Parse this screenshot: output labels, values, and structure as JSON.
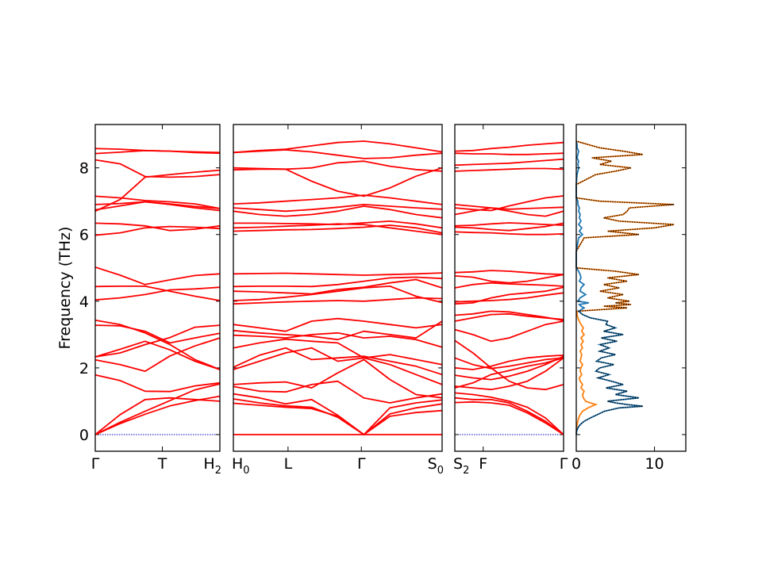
{
  "chart_data": [
    {
      "type": "line",
      "panel": "band-structure",
      "ylabel": "Frequency (THz)",
      "ylim": [
        -0.5,
        9.3
      ],
      "yticks": [
        0,
        2,
        4,
        6,
        8
      ],
      "segments": [
        {
          "xlim": [
            0,
            1
          ],
          "ticks": [
            {
              "pos": 0,
              "label": "Γ"
            },
            {
              "pos": 0.5385,
              "label": "T"
            },
            {
              "pos": 1,
              "label": "H",
              "sub": "2"
            }
          ],
          "bands": [
            [
              0,
              0.33,
              0.61,
              0.86,
              1.02,
              1.15
            ],
            [
              0,
              0.37,
              0.7,
              1.02,
              1.34,
              1.52
            ],
            [
              0,
              0.6,
              1.05,
              1.1,
              1.05,
              1.0
            ],
            [
              1.79,
              1.62,
              1.3,
              1.29,
              1.46,
              1.55
            ],
            [
              2.24,
              2.1,
              1.9,
              2.36,
              2.66,
              2.9
            ],
            [
              2.33,
              2.56,
              2.8,
              2.54,
              2.2,
              1.95
            ],
            [
              2.33,
              2.45,
              2.7,
              2.91,
              3.22,
              3.28
            ],
            [
              3.28,
              3.26,
              3.1,
              2.75,
              2.9,
              3.04
            ],
            [
              3.43,
              3.3,
              3.05,
              2.7,
              2.25,
              1.95
            ],
            [
              4.04,
              4.1,
              4.2,
              4.34,
              4.37,
              4.42
            ],
            [
              4.44,
              4.45,
              4.45,
              4.3,
              4.15,
              4.02
            ],
            [
              5.02,
              4.78,
              4.5,
              4.64,
              4.77,
              4.82
            ],
            [
              5.98,
              6.05,
              6.2,
              6.24,
              6.22,
              6.18
            ],
            [
              6.34,
              6.32,
              6.26,
              6.12,
              6.16,
              6.26
            ],
            [
              6.74,
              6.86,
              6.98,
              6.9,
              6.8,
              6.72
            ],
            [
              6.9,
              6.93,
              6.98,
              6.92,
              6.84,
              6.78
            ],
            [
              7.15,
              7.1,
              7.02,
              6.98,
              6.92,
              6.78
            ],
            [
              6.7,
              7.05,
              7.72,
              7.8,
              7.87,
              7.93
            ],
            [
              8.24,
              8.12,
              7.74,
              7.72,
              7.74,
              7.8
            ],
            [
              8.43,
              8.47,
              8.52,
              8.5,
              8.46,
              8.44
            ],
            [
              8.58,
              8.56,
              8.52,
              8.5,
              8.48,
              8.46
            ]
          ]
        },
        {
          "xlim": [
            0,
            1
          ],
          "ticks": [
            {
              "pos": 0,
              "label": "H",
              "sub": "0"
            },
            {
              "pos": 0.2619,
              "label": "L"
            },
            {
              "pos": 0.6131,
              "label": "Γ"
            },
            {
              "pos": 1,
              "label": "S",
              "sub": "0"
            }
          ],
          "bands": [
            [
              0,
              0,
              0,
              0,
              0,
              0,
              0,
              0,
              0
            ],
            [
              0.94,
              0.88,
              0.82,
              0.78,
              0.55,
              0,
              0.55,
              0.66,
              0.72
            ],
            [
              1.07,
              0.95,
              0.86,
              0.82,
              0.52,
              0,
              0.62,
              0.8,
              0.92
            ],
            [
              1.22,
              1.1,
              0.92,
              1.05,
              0.58,
              0,
              0.8,
              0.95,
              1.04
            ],
            [
              1.44,
              1.3,
              1.28,
              1.5,
              1.6,
              1.1,
              0.95,
              1.1,
              1.22
            ],
            [
              1.5,
              1.55,
              1.58,
              1.4,
              1.85,
              2.25,
              1.65,
              1.2,
              1.1
            ],
            [
              1.95,
              2.2,
              2.45,
              2.6,
              2.2,
              2.3,
              2.1,
              1.8,
              1.5
            ],
            [
              2.02,
              2.38,
              2.6,
              2.25,
              2.3,
              2.35,
              2.2,
              2.05,
              1.8
            ],
            [
              2.6,
              2.75,
              2.86,
              2.8,
              2.75,
              2.3,
              2.4,
              2.25,
              2.1
            ],
            [
              2.98,
              2.95,
              2.9,
              3.0,
              3.05,
              2.9,
              2.95,
              2.85,
              2.62
            ],
            [
              3.12,
              3.05,
              3.0,
              2.95,
              2.85,
              3.1,
              3.0,
              2.9,
              3.4
            ],
            [
              3.3,
              3.2,
              3.1,
              3.4,
              3.48,
              3.4,
              3.3,
              3.2,
              3.3
            ],
            [
              3.92,
              3.95,
              3.98,
              4.0,
              4.02,
              4.0,
              4.05,
              4.1,
              4.08
            ],
            [
              4.02,
              4.05,
              4.12,
              4.2,
              4.3,
              4.4,
              4.45,
              4.15,
              3.96
            ],
            [
              4.3,
              4.28,
              4.25,
              4.22,
              4.35,
              4.42,
              4.55,
              4.65,
              4.4
            ],
            [
              4.44,
              4.45,
              4.45,
              4.44,
              4.5,
              4.6,
              4.7,
              4.72,
              4.68
            ],
            [
              4.82,
              4.83,
              4.84,
              4.82,
              4.8,
              4.78,
              4.8,
              4.82,
              4.85
            ],
            [
              6.1,
              6.12,
              6.14,
              6.15,
              6.18,
              6.22,
              6.28,
              6.2,
              6.05
            ],
            [
              6.2,
              6.22,
              6.25,
              6.28,
              6.32,
              6.3,
              6.2,
              6.1,
              6.0
            ],
            [
              6.34,
              6.34,
              6.33,
              6.32,
              6.3,
              6.35,
              6.4,
              6.32,
              6.2
            ],
            [
              6.7,
              6.6,
              6.55,
              6.6,
              6.7,
              6.85,
              6.75,
              6.6,
              6.5
            ],
            [
              6.8,
              6.75,
              6.7,
              6.75,
              6.82,
              6.9,
              6.85,
              6.8,
              6.76
            ],
            [
              6.92,
              6.95,
              7.0,
              7.05,
              7.1,
              7.18,
              7.1,
              7.0,
              6.9
            ],
            [
              8.0,
              7.98,
              7.96,
              7.6,
              7.3,
              7.15,
              7.4,
              7.75,
              8.0
            ],
            [
              7.94,
              7.96,
              7.96,
              8.0,
              8.15,
              8.2,
              8.05,
              7.95,
              7.9
            ],
            [
              8.46,
              8.5,
              8.54,
              8.48,
              8.38,
              8.28,
              8.3,
              8.38,
              8.44
            ],
            [
              8.46,
              8.52,
              8.56,
              8.66,
              8.76,
              8.8,
              8.72,
              8.6,
              8.48
            ]
          ]
        },
        {
          "xlim": [
            0,
            1
          ],
          "ticks": [
            {
              "pos": 0,
              "label": "S",
              "sub": "2"
            },
            {
              "pos": 0.2609,
              "label": "F"
            },
            {
              "pos": 1,
              "label": "Γ"
            }
          ],
          "bands": [
            [
              0.96,
              0.98,
              0.95,
              0.88,
              0.65,
              0.35,
              0
            ],
            [
              1.1,
              1.05,
              1.05,
              0.95,
              0.7,
              0.4,
              0
            ],
            [
              1.25,
              1.2,
              1.12,
              1.0,
              0.82,
              0.5,
              0
            ],
            [
              1.45,
              1.4,
              1.35,
              1.45,
              1.6,
              1.9,
              2.3
            ],
            [
              1.4,
              1.55,
              1.8,
              1.92,
              2.05,
              2.15,
              2.3
            ],
            [
              1.78,
              1.7,
              1.65,
              1.75,
              1.9,
              2.1,
              2.35
            ],
            [
              2.0,
              1.95,
              2.05,
              2.2,
              2.3,
              2.35,
              2.38
            ],
            [
              2.3,
              2.1,
              1.98,
              2.05,
              2.15,
              2.25,
              2.3
            ],
            [
              2.82,
              2.45,
              2.0,
              1.6,
              1.4,
              1.35,
              1.5
            ],
            [
              3.15,
              3.0,
              2.8,
              2.9,
              3.1,
              3.3,
              3.4
            ],
            [
              3.4,
              3.5,
              3.6,
              3.62,
              3.55,
              3.5,
              3.45
            ],
            [
              3.58,
              3.62,
              3.7,
              3.68,
              3.6,
              3.52,
              3.42
            ],
            [
              3.98,
              4.0,
              4.02,
              4.05,
              4.1,
              4.18,
              4.25
            ],
            [
              3.92,
              3.95,
              4.1,
              4.2,
              4.25,
              4.3,
              4.42
            ],
            [
              4.4,
              4.5,
              4.55,
              4.52,
              4.5,
              4.48,
              4.45
            ],
            [
              4.76,
              4.72,
              4.6,
              4.55,
              4.6,
              4.7,
              4.8
            ],
            [
              4.86,
              4.88,
              4.92,
              4.9,
              4.86,
              4.82,
              4.8
            ],
            [
              6.08,
              6.06,
              6.05,
              6.02,
              6.0,
              6.0,
              6.02
            ],
            [
              6.22,
              6.2,
              6.15,
              6.12,
              6.18,
              6.24,
              6.34
            ],
            [
              6.26,
              6.28,
              6.32,
              6.35,
              6.33,
              6.3,
              6.28
            ],
            [
              6.6,
              6.7,
              6.8,
              6.7,
              6.6,
              6.55,
              6.7
            ],
            [
              6.9,
              6.85,
              6.8,
              6.76,
              6.78,
              6.8,
              6.82
            ],
            [
              6.8,
              6.75,
              6.72,
              6.86,
              6.98,
              7.1,
              7.16
            ],
            [
              7.9,
              7.92,
              7.94,
              7.96,
              7.98,
              7.98,
              7.96
            ],
            [
              8.08,
              8.1,
              8.12,
              8.14,
              8.18,
              8.22,
              8.26
            ],
            [
              8.44,
              8.42,
              8.42,
              8.4,
              8.4,
              8.42,
              8.44
            ],
            [
              8.5,
              8.52,
              8.58,
              8.62,
              8.68,
              8.72,
              8.76
            ]
          ]
        }
      ],
      "colors": {
        "bands": "#ff0000",
        "zero_line": "#0000cc"
      }
    },
    {
      "type": "line",
      "panel": "projected-dos",
      "xlim": [
        0,
        14
      ],
      "xticks": [
        0,
        10
      ],
      "ylim": [
        -0.5,
        9.3
      ],
      "series": [
        {
          "color": "#1f77b4",
          "style": "solid"
        },
        {
          "color": "#ff7f0e",
          "style": "solid"
        },
        {
          "color": "#000000",
          "style": "dotted"
        }
      ],
      "freq": [
        0.0,
        0.1,
        0.2,
        0.3,
        0.4,
        0.5,
        0.6,
        0.7,
        0.8,
        0.85,
        0.9,
        0.95,
        1.0,
        1.1,
        1.2,
        1.3,
        1.4,
        1.5,
        1.6,
        1.7,
        1.8,
        1.9,
        2.0,
        2.1,
        2.2,
        2.3,
        2.4,
        2.5,
        2.6,
        2.7,
        2.8,
        2.9,
        3.0,
        3.1,
        3.2,
        3.3,
        3.4,
        3.5,
        3.6,
        3.7,
        3.8,
        3.85,
        3.9,
        3.95,
        4.0,
        4.1,
        4.2,
        4.3,
        4.4,
        4.5,
        4.6,
        4.7,
        4.8,
        4.9,
        5.0,
        5.5,
        5.9,
        6.0,
        6.1,
        6.2,
        6.3,
        6.4,
        6.5,
        6.6,
        6.7,
        6.8,
        6.9,
        7.0,
        7.1,
        7.5,
        7.8,
        7.9,
        8.0,
        8.1,
        8.2,
        8.3,
        8.4,
        8.5,
        8.6,
        8.7,
        8.8
      ],
      "dos_a": [
        0.0,
        0.05,
        0.2,
        0.5,
        1.0,
        1.8,
        2.7,
        3.6,
        5.5,
        8.5,
        6.5,
        5.0,
        4.0,
        8.0,
        5.0,
        6.5,
        3.8,
        6.0,
        4.5,
        2.8,
        4.2,
        2.5,
        3.0,
        4.8,
        2.6,
        3.2,
        5.0,
        3.0,
        4.2,
        3.0,
        5.2,
        3.2,
        6.0,
        3.5,
        5.0,
        3.8,
        4.0,
        1.8,
        0.8,
        0.3,
        1.0,
        0.6,
        0.4,
        1.6,
        0.2,
        0.5,
        1.2,
        0.5,
        0.6,
        1.0,
        0.4,
        0.6,
        0.5,
        0.3,
        0,
        0,
        0.3,
        0.8,
        0.4,
        0.7,
        0.3,
        0.6,
        0.4,
        0.5,
        0.3,
        0.4,
        0.2,
        0.2,
        0,
        0,
        0.1,
        0.2,
        0.3,
        0.2,
        0.3,
        0.1,
        0.2,
        0.3,
        0.1,
        0.1,
        0
      ],
      "dos_b": [
        0.0,
        0.02,
        0.05,
        0.1,
        0.2,
        0.3,
        0.5,
        0.8,
        1.5,
        2.0,
        2.5,
        1.8,
        1.2,
        0.9,
        0.8,
        1.0,
        0.6,
        0.8,
        0.5,
        0.4,
        0.7,
        0.5,
        0.6,
        0.8,
        0.5,
        0.6,
        0.7,
        0.5,
        0.8,
        0.6,
        0.9,
        0.6,
        1.0,
        0.7,
        0.9,
        0.6,
        0.4,
        0.2,
        0.1,
        0.1,
        6.5,
        3.5,
        7.0,
        5.0,
        6.8,
        4.0,
        6.0,
        3.0,
        5.5,
        3.5,
        6.5,
        4.0,
        8.0,
        5.0,
        0,
        0,
        1.0,
        8.0,
        4.0,
        10.0,
        12.5,
        5.5,
        3.5,
        6.0,
        6.5,
        6.8,
        12.5,
        3.0,
        0,
        0,
        2.5,
        5.0,
        7.0,
        3.0,
        4.5,
        2.0,
        8.5,
        6.0,
        3.0,
        1.5,
        0
      ]
    }
  ]
}
